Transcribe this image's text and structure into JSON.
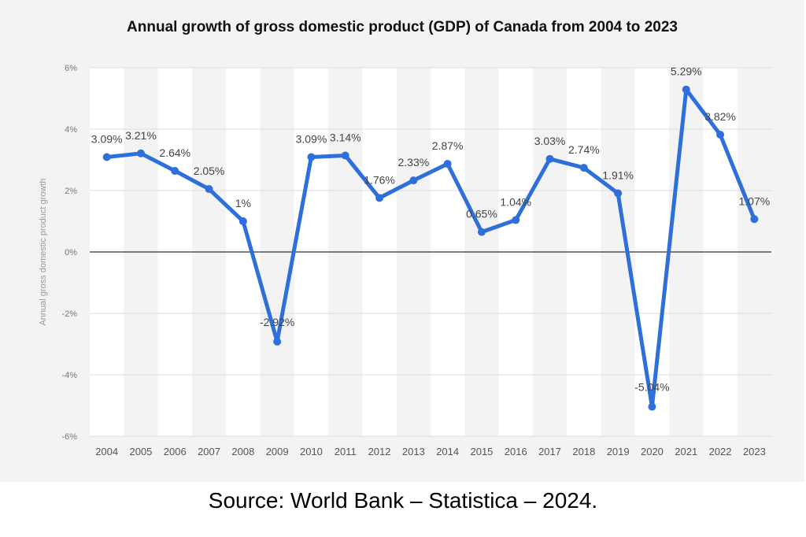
{
  "chart_data": {
    "type": "line",
    "title": "Annual growth of gross domestic product (GDP) of Canada from 2004 to 2023",
    "xlabel": "",
    "ylabel": "Annual gross domestic product growth",
    "categories": [
      "2004",
      "2005",
      "2006",
      "2007",
      "2008",
      "2009",
      "2010",
      "2011",
      "2012",
      "2013",
      "2014",
      "2015",
      "2016",
      "2017",
      "2018",
      "2019",
      "2020",
      "2021",
      "2022",
      "2023"
    ],
    "values": [
      3.09,
      3.21,
      2.64,
      2.05,
      1.0,
      -2.92,
      3.09,
      3.14,
      1.76,
      2.33,
      2.87,
      0.65,
      1.04,
      3.03,
      2.74,
      1.91,
      -5.04,
      5.29,
      3.82,
      1.07
    ],
    "data_labels": [
      "3.09%",
      "3.21%",
      "2.64%",
      "2.05%",
      "1%",
      "-2.92%",
      "3.09%",
      "3.14%",
      "1.76%",
      "2.33%",
      "2.87%",
      "0.65%",
      "1.04%",
      "3.03%",
      "2.74%",
      "1.91%",
      "-5.04%",
      "5.29%",
      "3.82%",
      "1.07%"
    ],
    "y_ticks": [
      6,
      4,
      2,
      0,
      -2,
      -4,
      -6
    ],
    "y_tick_labels": [
      "6%",
      "4%",
      "2%",
      "0%",
      "-2%",
      "-4%",
      "-6%"
    ],
    "ylim": [
      -6,
      6
    ],
    "grid": true,
    "alternating_column_bands": true,
    "legend": "none",
    "colors": {
      "line": "#2f6fdb",
      "zero_line": "#333333",
      "grid": "#dddddd",
      "band": "#ffffff"
    }
  },
  "caption": "Source:  World Bank – Statistica – 2024."
}
